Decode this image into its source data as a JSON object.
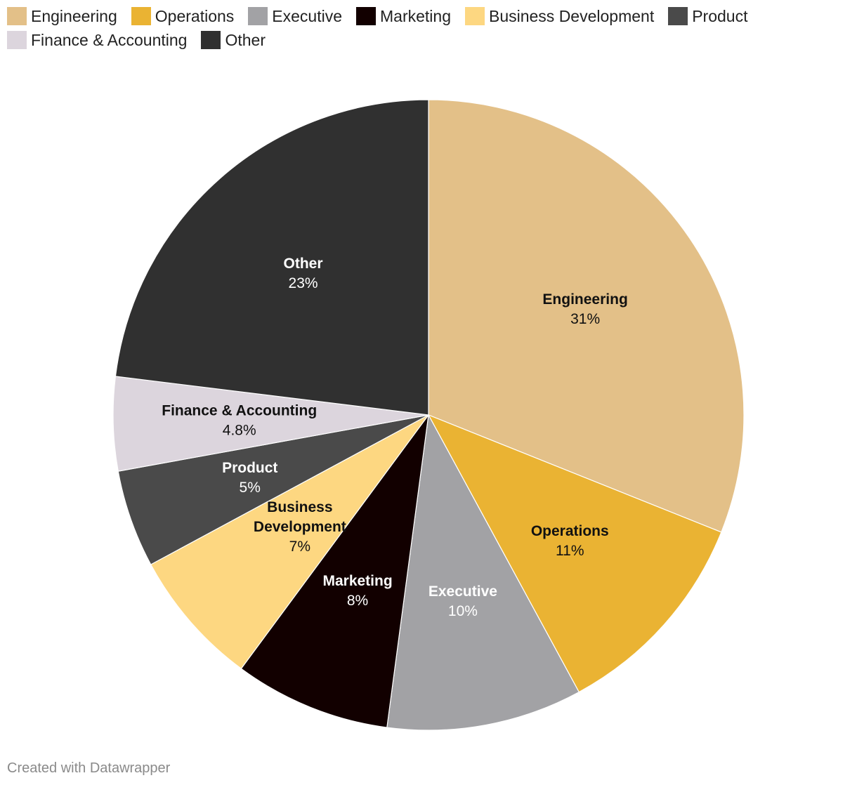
{
  "chart_data": {
    "type": "pie",
    "series": [
      {
        "name": "Engineering",
        "value": 31,
        "label": "31%",
        "color": "#e3c088",
        "text_color": "#111111"
      },
      {
        "name": "Operations",
        "value": 11,
        "label": "11%",
        "color": "#eab333",
        "text_color": "#111111"
      },
      {
        "name": "Executive",
        "value": 10,
        "label": "10%",
        "color": "#a2a2a5",
        "text_color": "#ffffff"
      },
      {
        "name": "Marketing",
        "value": 8,
        "label": "8%",
        "color": "#120000",
        "text_color": "#ffffff"
      },
      {
        "name": "Business Development",
        "value": 7,
        "label": "7%",
        "color": "#fdd781",
        "text_color": "#111111"
      },
      {
        "name": "Product",
        "value": 5,
        "label": "5%",
        "color": "#4a4a4a",
        "text_color": "#ffffff"
      },
      {
        "name": "Finance & Accounting",
        "value": 4.8,
        "label": "4.8%",
        "color": "#dcd5dd",
        "text_color": "#111111"
      },
      {
        "name": "Other",
        "value": 23,
        "label": "23%",
        "color": "#303030",
        "text_color": "#ffffff"
      }
    ],
    "legend_position": "top-left"
  },
  "footer": {
    "credit": "Created with Datawrapper"
  }
}
